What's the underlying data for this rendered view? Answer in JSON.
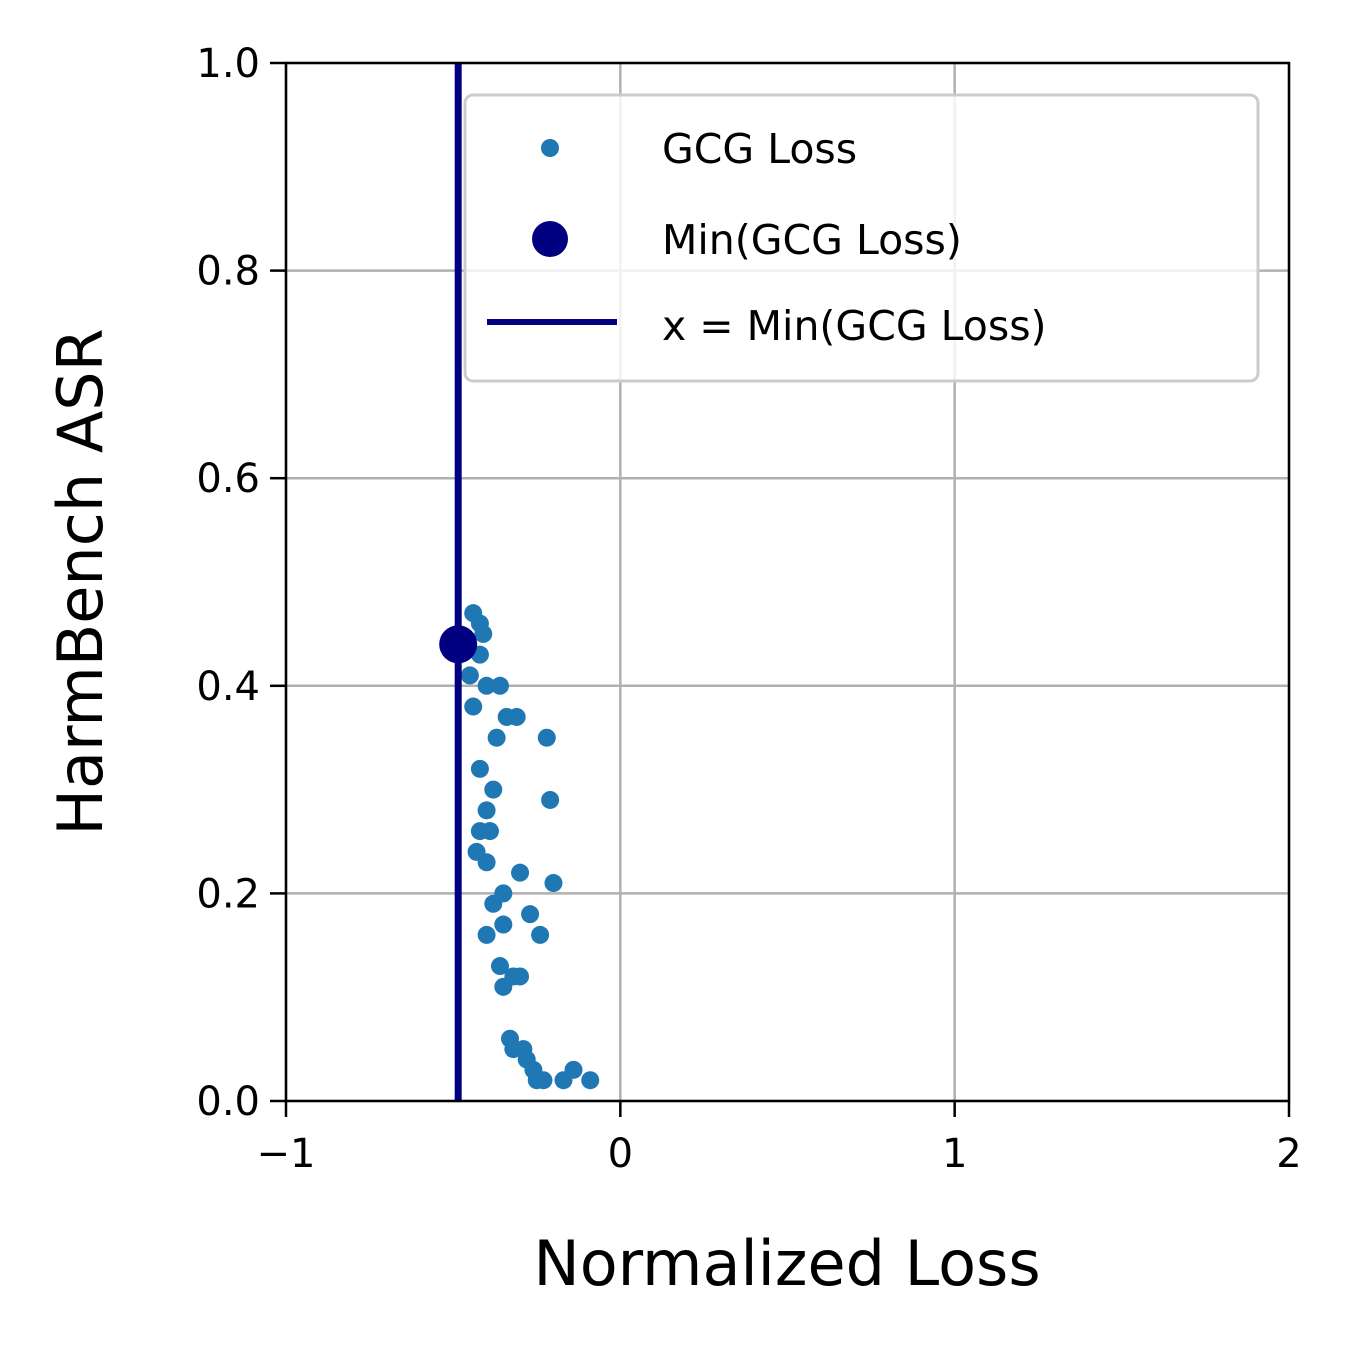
{
  "chart_data": {
    "type": "scatter",
    "title": "",
    "xlabel": "Normalized Loss",
    "ylabel": "HarmBench ASR",
    "xlim": [
      -1,
      2
    ],
    "ylim": [
      0,
      1
    ],
    "grid": true,
    "legend_position": "top-right",
    "x_ticks": [
      -1,
      0,
      1,
      2
    ],
    "x_tick_labels": [
      "−1",
      "0",
      "1",
      "2"
    ],
    "y_ticks": [
      0,
      0.2,
      0.4,
      0.6,
      0.8,
      1.0
    ],
    "y_tick_labels": [
      "0.0",
      "0.2",
      "0.4",
      "0.6",
      "0.8",
      "1.0"
    ],
    "colors": {
      "gcg_points": "#1f77b4",
      "min_marker": "#000080",
      "min_line": "#000080",
      "grid": "#b0b0b0"
    },
    "series": [
      {
        "name": "GCG Loss",
        "kind": "scatter",
        "points": [
          [
            -0.44,
            0.47
          ],
          [
            -0.42,
            0.46
          ],
          [
            -0.41,
            0.45
          ],
          [
            -0.42,
            0.43
          ],
          [
            -0.45,
            0.41
          ],
          [
            -0.4,
            0.4
          ],
          [
            -0.36,
            0.4
          ],
          [
            -0.44,
            0.38
          ],
          [
            -0.34,
            0.37
          ],
          [
            -0.31,
            0.37
          ],
          [
            -0.37,
            0.35
          ],
          [
            -0.22,
            0.35
          ],
          [
            -0.42,
            0.32
          ],
          [
            -0.38,
            0.3
          ],
          [
            -0.21,
            0.29
          ],
          [
            -0.4,
            0.28
          ],
          [
            -0.42,
            0.26
          ],
          [
            -0.39,
            0.26
          ],
          [
            -0.43,
            0.24
          ],
          [
            -0.4,
            0.23
          ],
          [
            -0.3,
            0.22
          ],
          [
            -0.2,
            0.21
          ],
          [
            -0.35,
            0.2
          ],
          [
            -0.38,
            0.19
          ],
          [
            -0.27,
            0.18
          ],
          [
            -0.35,
            0.17
          ],
          [
            -0.4,
            0.16
          ],
          [
            -0.24,
            0.16
          ],
          [
            -0.36,
            0.13
          ],
          [
            -0.32,
            0.12
          ],
          [
            -0.3,
            0.12
          ],
          [
            -0.35,
            0.11
          ],
          [
            -0.33,
            0.06
          ],
          [
            -0.32,
            0.05
          ],
          [
            -0.29,
            0.05
          ],
          [
            -0.28,
            0.04
          ],
          [
            -0.26,
            0.03
          ],
          [
            -0.25,
            0.02
          ],
          [
            -0.23,
            0.02
          ],
          [
            -0.17,
            0.02
          ],
          [
            -0.14,
            0.03
          ],
          [
            -0.09,
            0.02
          ]
        ]
      },
      {
        "name": "Min(GCG Loss)",
        "kind": "point",
        "points": [
          [
            -0.485,
            0.44
          ]
        ]
      },
      {
        "name": "x = Min(GCG Loss)",
        "kind": "vline",
        "x": -0.485
      }
    ]
  }
}
